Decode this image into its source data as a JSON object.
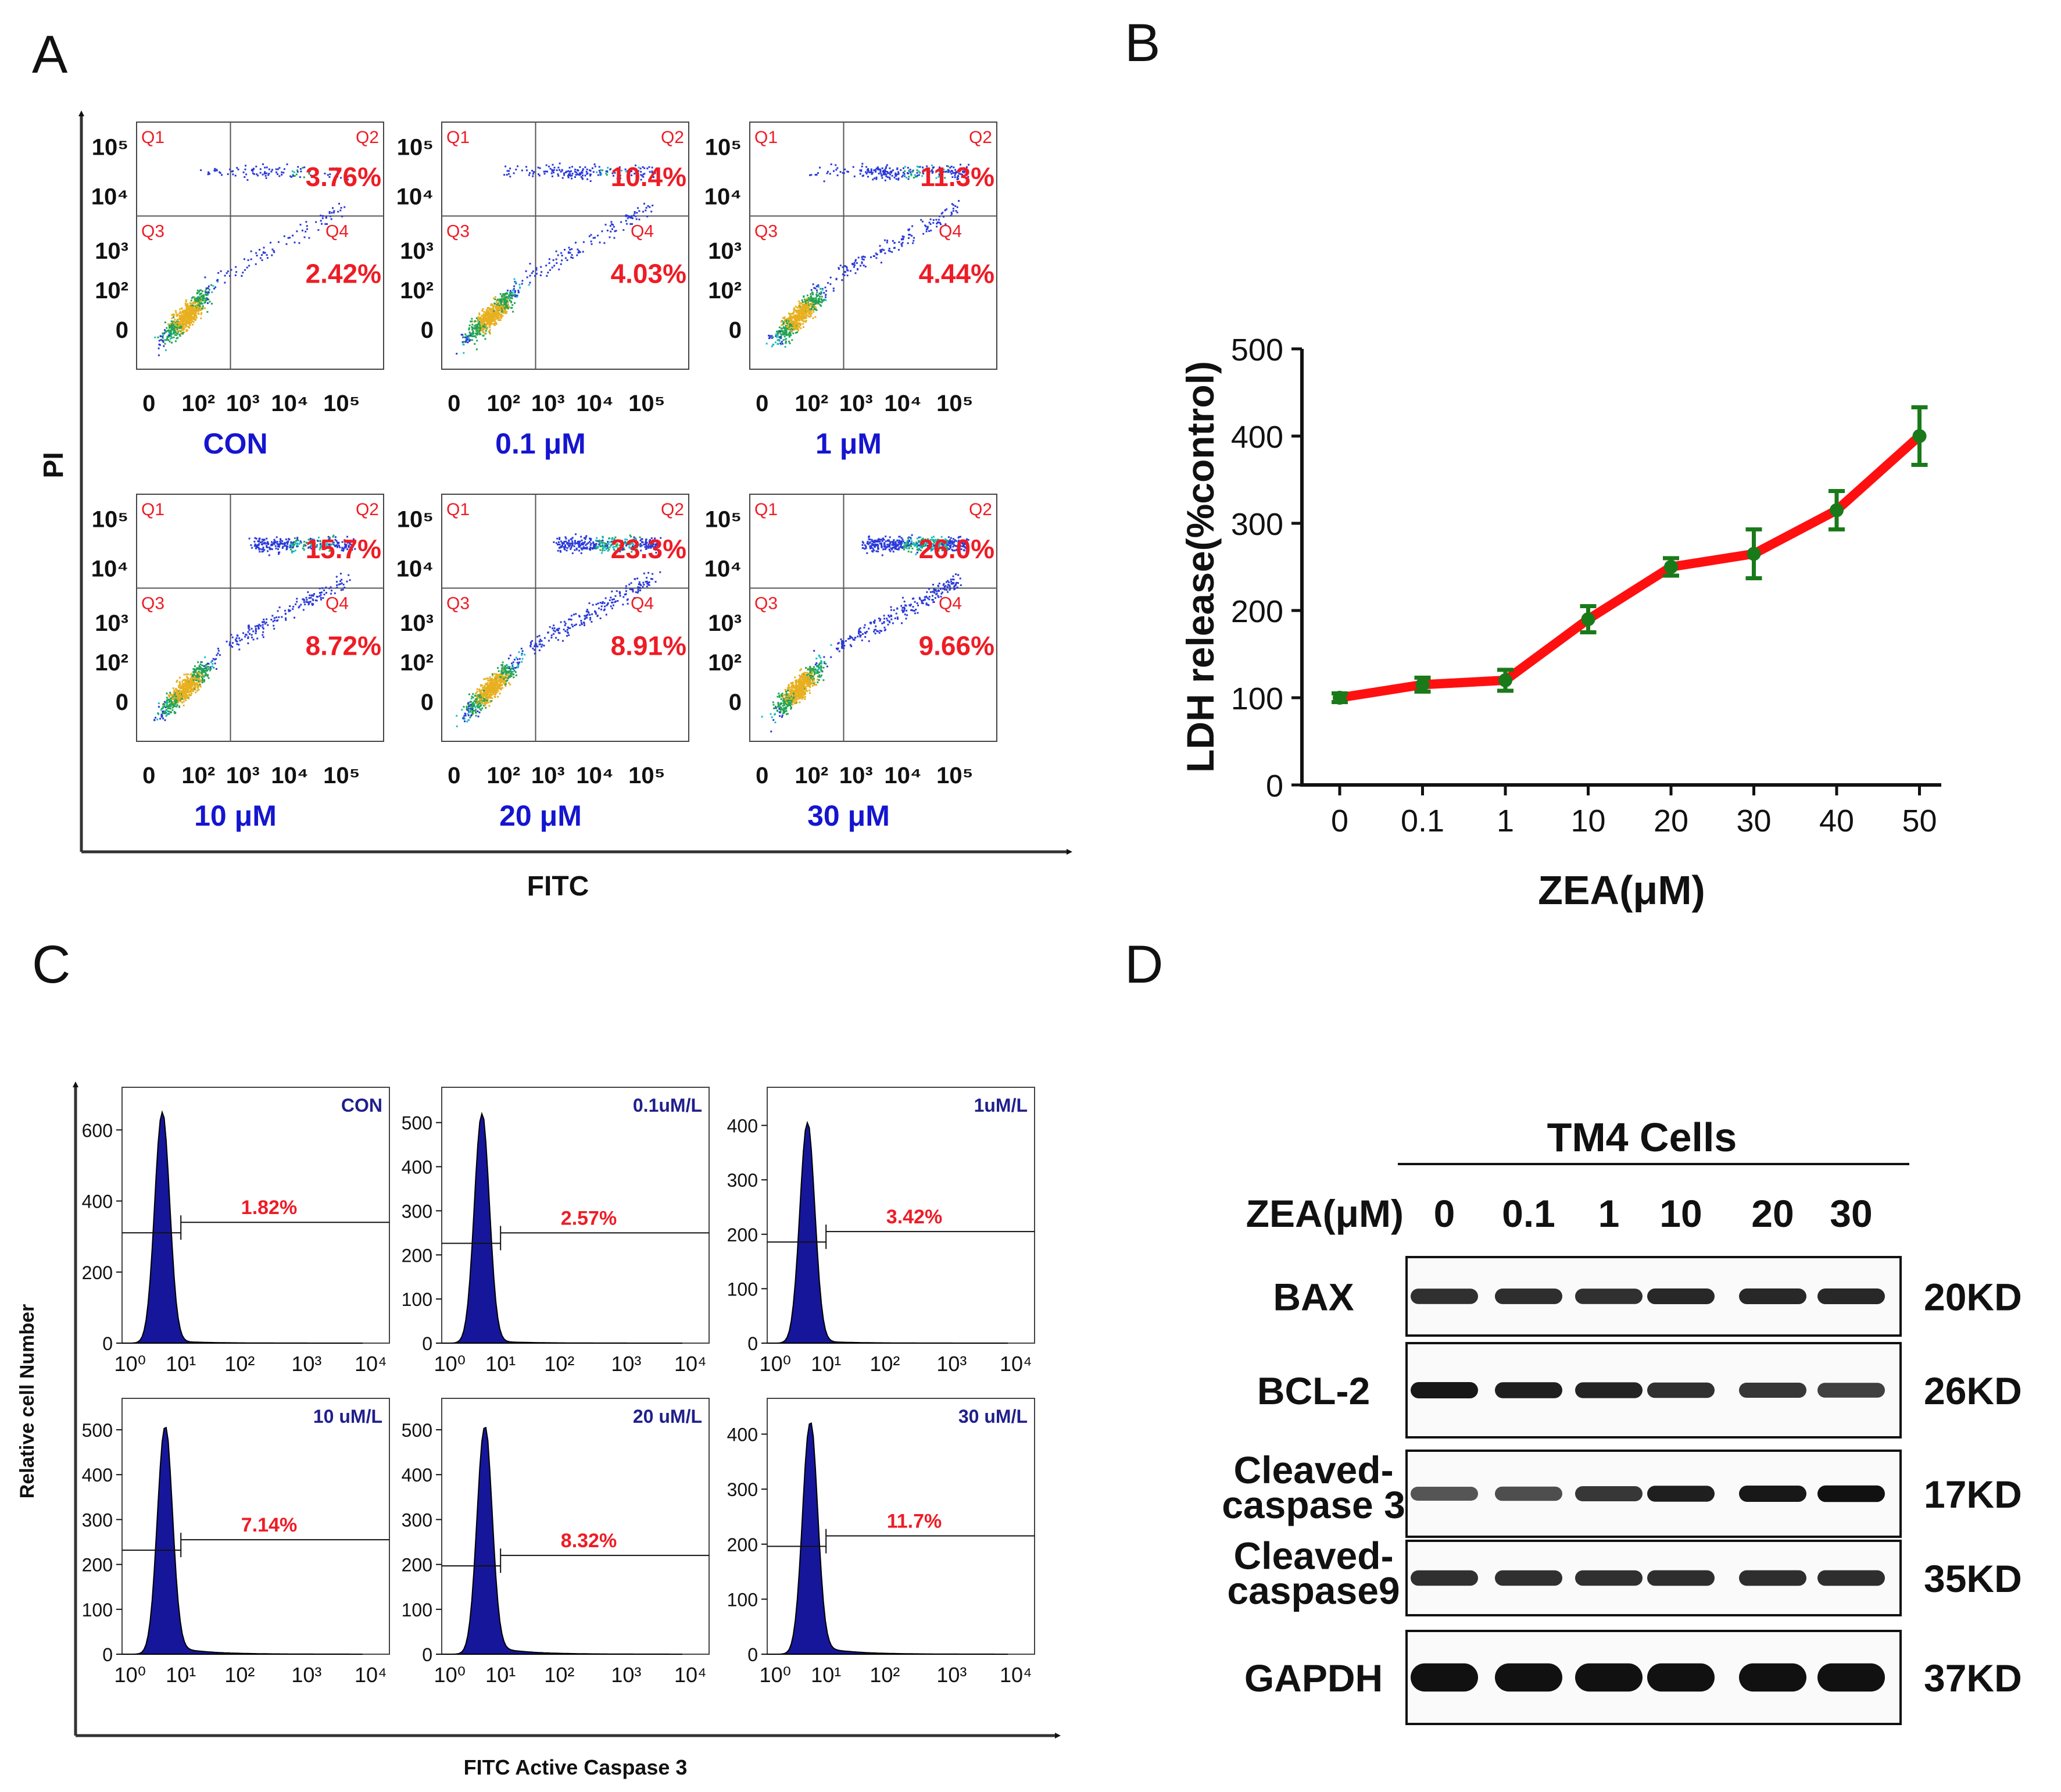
{
  "panels": {
    "A": "A",
    "B": "B",
    "C": "C",
    "D": "D"
  },
  "colors": {
    "red": "#ee1c25",
    "blue": "#1515d0",
    "navy": "#1f1f8c",
    "green": "#1a7a1a",
    "line_red": "#ff1010",
    "hist_fill": "#16169a"
  },
  "chart_data": [
    {
      "panel": "A",
      "type": "scatter",
      "title": "",
      "xlabel": "FITC",
      "ylabel": "PI",
      "x_ticks": [
        "0",
        "10²",
        "10³",
        "10⁴",
        "10⁵"
      ],
      "y_ticks": [
        "0",
        "10²",
        "10³",
        "10⁴",
        "10⁵"
      ],
      "quadrant_labels": [
        "Q1",
        "Q2",
        "Q3",
        "Q4"
      ],
      "plots": [
        {
          "label": "CON",
          "Q2": "3.76%",
          "Q4": "2.42%"
        },
        {
          "label": "0.1 μM",
          "Q2": "10.4%",
          "Q4": "4.03%"
        },
        {
          "label": "1 μM",
          "Q2": "11.3%",
          "Q4": "4.44%"
        },
        {
          "label": "10 μM",
          "Q2": "15.7%",
          "Q4": "8.72%"
        },
        {
          "label": "20 μM",
          "Q2": "23.3%",
          "Q4": "8.91%"
        },
        {
          "label": "30 μM",
          "Q2": "26.0%",
          "Q4": "9.66%"
        }
      ]
    },
    {
      "panel": "B",
      "type": "line",
      "title": "",
      "xlabel": "ZEA(μM)",
      "ylabel": "LDH release(%control)",
      "categories": [
        "0",
        "0.1",
        "1",
        "10",
        "20",
        "30",
        "40",
        "50"
      ],
      "values": [
        100,
        115,
        120,
        190,
        250,
        265,
        315,
        400
      ],
      "errors": [
        5,
        8,
        12,
        15,
        10,
        28,
        22,
        33
      ],
      "ylim": [
        0,
        500
      ],
      "yticks": [
        0,
        100,
        200,
        300,
        400,
        500
      ]
    },
    {
      "panel": "C",
      "type": "histogram",
      "title": "",
      "xlabel": "FITC Active Caspase 3",
      "ylabel": "Relative cell Number",
      "x_ticks": [
        "10⁰",
        "10¹",
        "10²",
        "10³",
        "10⁴"
      ],
      "plots": [
        {
          "label": "CON",
          "percent": "1.82%",
          "yticks": [
            0,
            200,
            400,
            600
          ],
          "ymax": 720,
          "peak": 650,
          "gate_y": 340
        },
        {
          "label": "0.1uM/L",
          "percent": "2.57%",
          "yticks": [
            0,
            100,
            200,
            300,
            400,
            500
          ],
          "ymax": 580,
          "peak": 520,
          "gate_y": 250
        },
        {
          "label": "1uM/L",
          "percent": "3.42%",
          "yticks": [
            0,
            100,
            200,
            300,
            400
          ],
          "ymax": 470,
          "peak": 405,
          "gate_y": 205
        },
        {
          "label": "10 uM/L",
          "percent": "7.14%",
          "yticks": [
            0,
            100,
            200,
            300,
            400,
            500
          ],
          "ymax": 570,
          "peak": 505,
          "gate_y": 255
        },
        {
          "label": "20 uM/L",
          "percent": "8.32%",
          "yticks": [
            0,
            100,
            200,
            300,
            400,
            500
          ],
          "ymax": 570,
          "peak": 505,
          "gate_y": 220
        },
        {
          "label": "30 uM/L",
          "percent": "11.7%",
          "yticks": [
            0,
            100,
            200,
            300,
            400
          ],
          "ymax": 465,
          "peak": 420,
          "gate_y": 215
        }
      ]
    }
  ],
  "western": {
    "group_title": "TM4 Cells",
    "dose_label": "ZEA(μM)",
    "doses": [
      "0",
      "0.1",
      "1",
      "10",
      "20",
      "30"
    ],
    "blots": [
      {
        "name": "BAX",
        "name2": "",
        "size": "20KD",
        "intensity": [
          0.8,
          0.82,
          0.8,
          0.85,
          0.85,
          0.85
        ]
      },
      {
        "name": "BCL-2",
        "name2": "",
        "size": "26KD",
        "intensity": [
          0.95,
          0.9,
          0.88,
          0.8,
          0.75,
          0.7
        ]
      },
      {
        "name": "Cleaved-",
        "name2": "caspase 3",
        "size": "17KD",
        "intensity": [
          0.55,
          0.6,
          0.75,
          0.9,
          0.95,
          1.0
        ]
      },
      {
        "name": "Cleaved-",
        "name2": "caspase9",
        "size": "35KD",
        "intensity": [
          0.8,
          0.8,
          0.8,
          0.82,
          0.82,
          0.82
        ]
      },
      {
        "name": "GAPDH",
        "name2": "",
        "size": "37KD",
        "intensity": [
          1.0,
          1.0,
          1.0,
          1.0,
          1.0,
          1.0
        ]
      }
    ]
  }
}
